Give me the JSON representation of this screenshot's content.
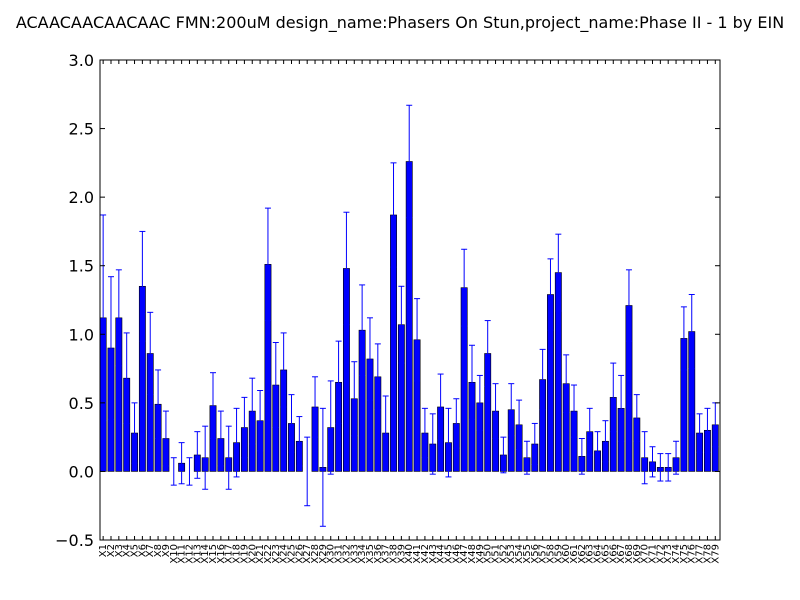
{
  "chart_data": {
    "type": "bar",
    "title": "ACAACAACAACAAC  FMN:200uM  design_name:Phasers On Stun,project_name:Phase II - 1 by EIN",
    "xlabel": "",
    "ylabel": "",
    "ylim": [
      -0.5,
      3.0
    ],
    "yticks": [
      "−0.5",
      "0.0",
      "0.5",
      "1.0",
      "1.5",
      "2.0",
      "2.5",
      "3.0"
    ],
    "ytick_values": [
      -0.5,
      0.0,
      0.5,
      1.0,
      1.5,
      2.0,
      2.5,
      3.0
    ],
    "grid": false,
    "bar_color": "#0000ff",
    "error_color": "#0000ff",
    "categories": [
      "X1",
      "X2",
      "X3",
      "X4",
      "X5",
      "X6",
      "X7",
      "X8",
      "X9",
      "X10",
      "X11",
      "X12",
      "X13",
      "X14",
      "X15",
      "X16",
      "X17",
      "X18",
      "X19",
      "X20",
      "X21",
      "X22",
      "X23",
      "X24",
      "X25",
      "X26",
      "X27",
      "X28",
      "X29",
      "X30",
      "X31",
      "X32",
      "X33",
      "X34",
      "X35",
      "X36",
      "X37",
      "X38",
      "X39",
      "X40",
      "X41",
      "X42",
      "X43",
      "X44",
      "X45",
      "X46",
      "X47",
      "X48",
      "X49",
      "X50",
      "X51",
      "X52",
      "X53",
      "X54",
      "X55",
      "X56",
      "X57",
      "X58",
      "X59",
      "X60",
      "X61",
      "X62",
      "X63",
      "X64",
      "X65",
      "X66",
      "X67",
      "X68",
      "X69",
      "X70",
      "X71",
      "X72",
      "X73",
      "X74",
      "X75",
      "X76",
      "X77",
      "X78",
      "X79"
    ],
    "values": [
      1.12,
      0.9,
      1.12,
      0.68,
      0.28,
      1.35,
      0.86,
      0.49,
      0.24,
      0.0,
      0.06,
      0.0,
      0.12,
      0.1,
      0.48,
      0.24,
      0.1,
      0.21,
      0.32,
      0.44,
      0.37,
      1.51,
      0.63,
      0.74,
      0.35,
      0.22,
      0.0,
      0.47,
      0.03,
      0.32,
      0.65,
      1.48,
      0.53,
      1.03,
      0.82,
      0.69,
      0.28,
      1.87,
      1.07,
      2.26,
      0.96,
      0.28,
      0.2,
      0.47,
      0.21,
      0.35,
      1.34,
      0.65,
      0.5,
      0.86,
      0.44,
      0.12,
      0.45,
      0.34,
      0.1,
      0.2,
      0.67,
      1.29,
      1.45,
      0.64,
      0.44,
      0.11,
      0.29,
      0.15,
      0.22,
      0.54,
      0.46,
      1.21,
      0.39,
      0.1,
      0.07,
      0.03,
      0.03,
      0.1,
      0.97,
      1.02,
      0.28,
      0.3,
      0.34
    ],
    "errors": [
      0.75,
      0.52,
      0.35,
      0.33,
      0.22,
      0.4,
      0.3,
      0.25,
      0.2,
      0.1,
      0.15,
      0.1,
      0.17,
      0.23,
      0.24,
      0.2,
      0.23,
      0.25,
      0.22,
      0.24,
      0.22,
      0.41,
      0.31,
      0.27,
      0.21,
      0.18,
      0.25,
      0.22,
      0.43,
      0.34,
      0.3,
      0.41,
      0.27,
      0.33,
      0.3,
      0.24,
      0.27,
      0.38,
      0.28,
      0.41,
      0.3,
      0.18,
      0.22,
      0.24,
      0.25,
      0.18,
      0.28,
      0.27,
      0.2,
      0.24,
      0.2,
      0.13,
      0.19,
      0.18,
      0.12,
      0.15,
      0.22,
      0.26,
      0.28,
      0.21,
      0.19,
      0.13,
      0.17,
      0.14,
      0.15,
      0.25,
      0.24,
      0.26,
      0.17,
      0.19,
      0.11,
      0.1,
      0.1,
      0.12,
      0.23,
      0.27,
      0.14,
      0.16,
      0.16
    ]
  }
}
